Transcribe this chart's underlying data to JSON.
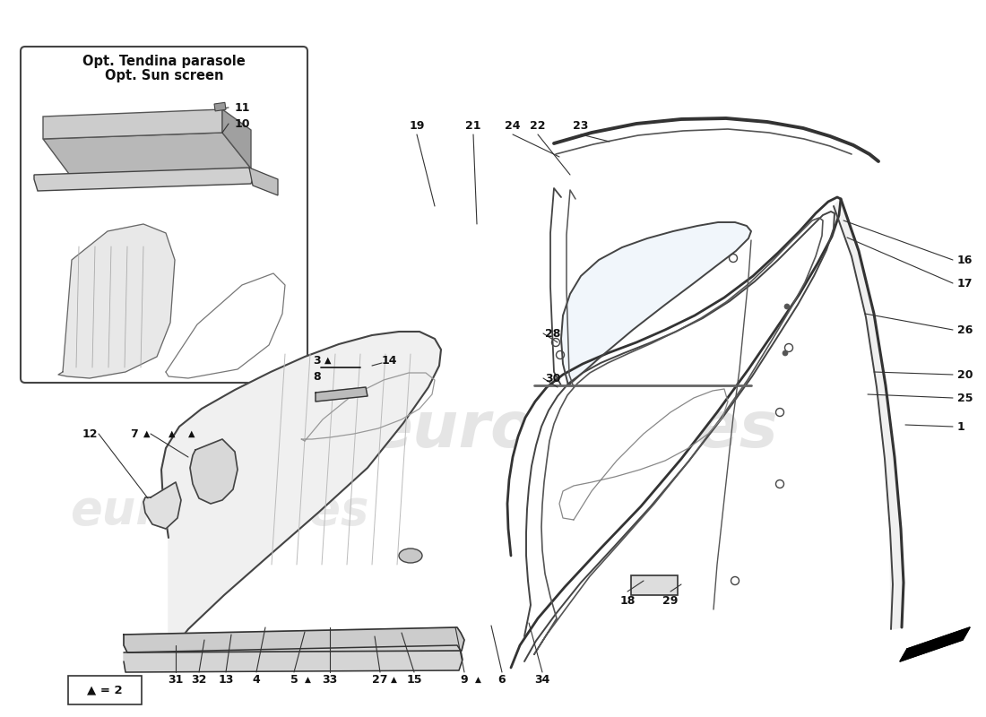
{
  "bg_color": "#ffffff",
  "lc": "#111111",
  "inset_title1": "Opt. Tendina parasole",
  "inset_title2": "Opt. Sun screen",
  "legend_text": "▲ = 2",
  "watermark": "eurospares",
  "fs": 9,
  "lw_main": 1.8,
  "lw_thin": 1.0,
  "lw_leader": 0.8
}
